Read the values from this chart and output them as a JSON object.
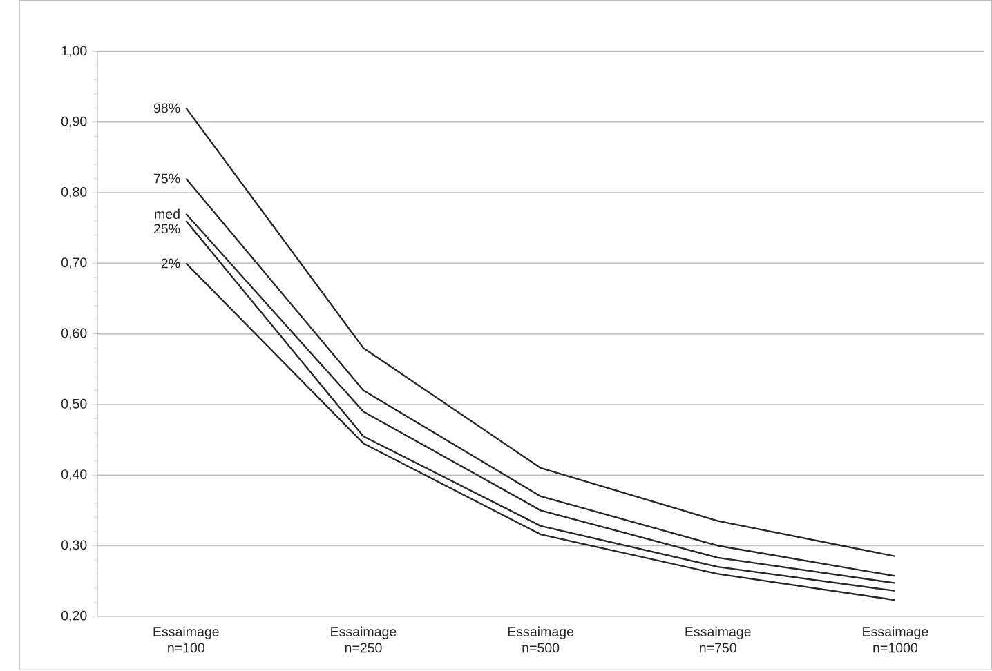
{
  "chart_data": {
    "type": "line",
    "categories": [
      "Essaimage n=100",
      "Essaimage n=250",
      "Essaimage n=500",
      "Essaimage n=750",
      "Essaimage n=1000"
    ],
    "series": [
      {
        "name": "98%",
        "color": "#262626",
        "values": [
          0.92,
          0.58,
          0.41,
          0.335,
          0.285
        ]
      },
      {
        "name": "75%",
        "color": "#262626",
        "values": [
          0.82,
          0.52,
          0.37,
          0.3,
          0.257
        ]
      },
      {
        "name": "med",
        "color": "#262626",
        "values": [
          0.77,
          0.49,
          0.35,
          0.283,
          0.247
        ]
      },
      {
        "name": "25%",
        "color": "#262626",
        "values": [
          0.76,
          0.455,
          0.328,
          0.27,
          0.236
        ]
      },
      {
        "name": "2%",
        "color": "#262626",
        "values": [
          0.7,
          0.445,
          0.316,
          0.26,
          0.223
        ]
      }
    ],
    "ylim": [
      0.2,
      1.0
    ],
    "yticks": [
      {
        "value": 0.2,
        "label": "0,20"
      },
      {
        "value": 0.3,
        "label": "0,30"
      },
      {
        "value": 0.4,
        "label": "0,40"
      },
      {
        "value": 0.5,
        "label": "0,50"
      },
      {
        "value": 0.6,
        "label": "0,60"
      },
      {
        "value": 0.7,
        "label": "0,70"
      },
      {
        "value": 0.8,
        "label": "0,80"
      },
      {
        "value": 0.9,
        "label": "0,90"
      },
      {
        "value": 1.0,
        "label": "1,00"
      }
    ],
    "grid": "y",
    "legend": false,
    "marker": "none",
    "line_style": "solid"
  }
}
